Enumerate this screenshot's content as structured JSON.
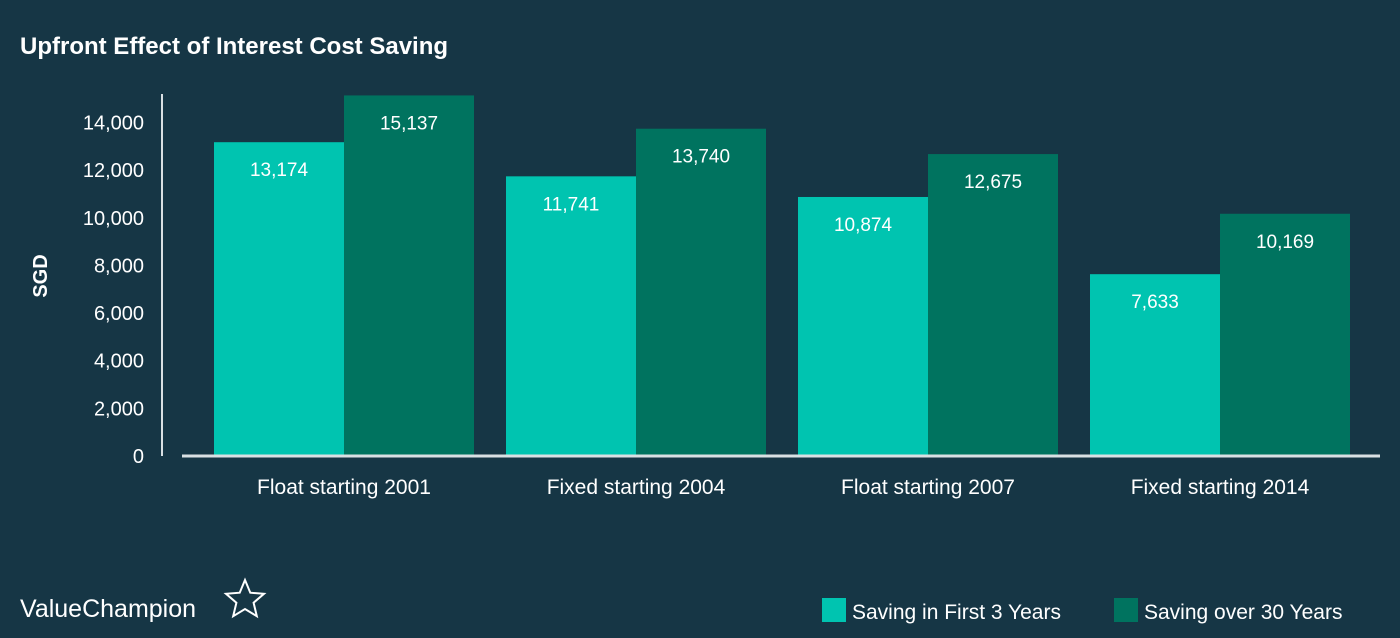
{
  "brand": {
    "name": "ValueChampion",
    "logo_icon": "star-outline-icon"
  },
  "colors": {
    "background": "#163645",
    "series_first3": "#00c4b0",
    "series_over30": "#00735f",
    "axis": "#d9e0e3"
  },
  "chart_data": {
    "type": "bar",
    "title": "Upfront Effect of Interest Cost Saving",
    "xlabel": "",
    "ylabel": "SGD",
    "ylim": [
      0,
      15200
    ],
    "yticks": [
      0,
      2000,
      4000,
      6000,
      8000,
      10000,
      12000,
      14000
    ],
    "ytick_labels": [
      "0",
      "2,000",
      "4,000",
      "6,000",
      "8,000",
      "10,000",
      "12,000",
      "14,000"
    ],
    "categories": [
      "Float starting 2001",
      "Fixed starting 2004",
      "Float starting 2007",
      "Fixed starting 2014"
    ],
    "series": [
      {
        "name": "Saving in First 3 Years",
        "color": "#00c4b0",
        "values": [
          13174,
          11741,
          10874,
          7633
        ],
        "labels": [
          "13,174",
          "11,741",
          "10,874",
          "7,633"
        ]
      },
      {
        "name": "Saving over 30 Years",
        "color": "#00735f",
        "values": [
          15137,
          13740,
          12675,
          10169
        ],
        "labels": [
          "15,137",
          "13,740",
          "12,675",
          "10,169"
        ]
      }
    ],
    "grid": false,
    "legend_position": "bottom-right",
    "data_labels": "inside-top"
  }
}
